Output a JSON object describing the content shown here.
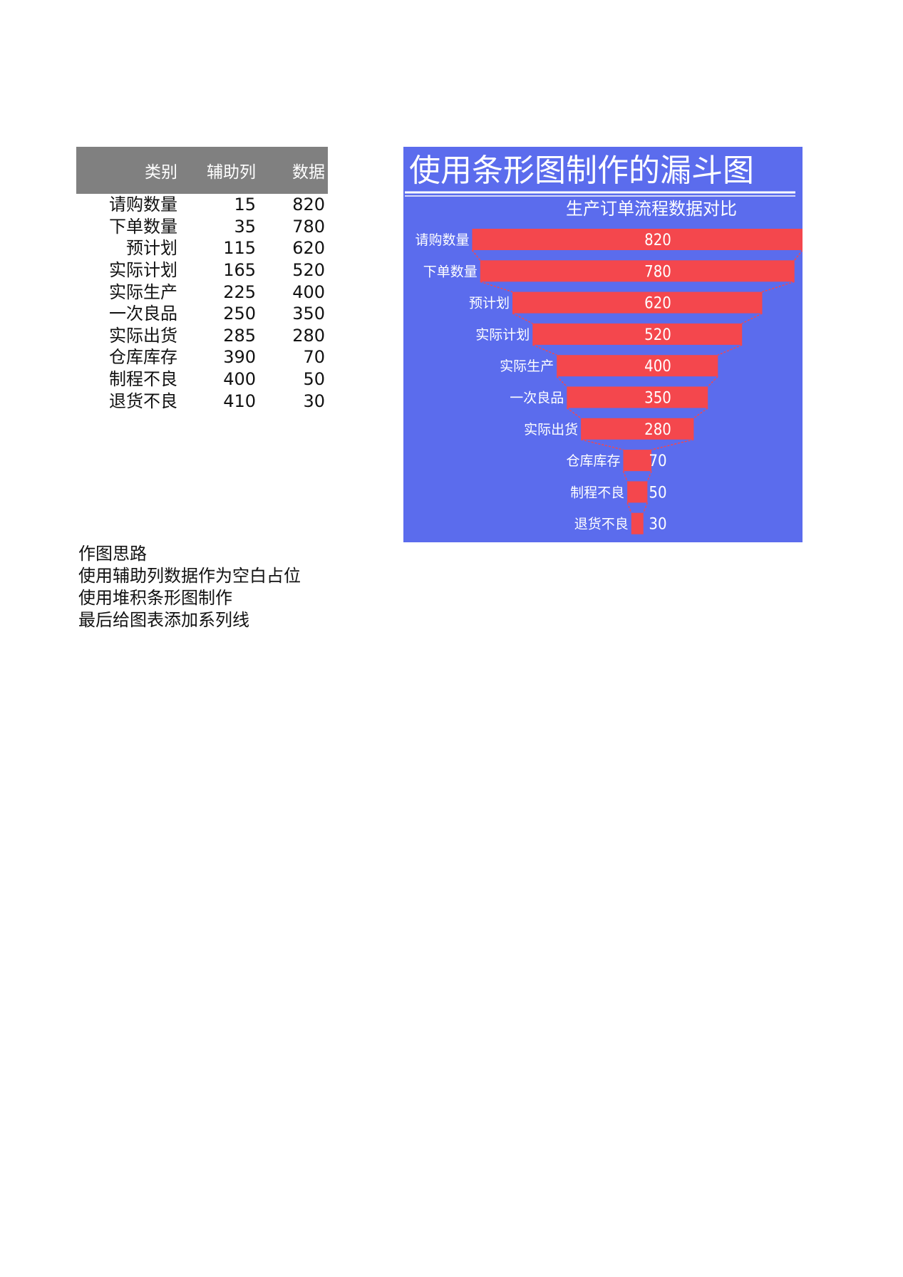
{
  "table": {
    "headers": [
      "类别",
      "辅助列",
      "数据"
    ],
    "rows": [
      [
        "请购数量",
        "15",
        "820"
      ],
      [
        "下单数量",
        "35",
        "780"
      ],
      [
        "预计划",
        "115",
        "620"
      ],
      [
        "实际计划",
        "165",
        "520"
      ],
      [
        "实际生产",
        "225",
        "400"
      ],
      [
        "一次良品",
        "250",
        "350"
      ],
      [
        "实际出货",
        "285",
        "280"
      ],
      [
        "仓库库存",
        "390",
        "70"
      ],
      [
        "制程不良",
        "400",
        "50"
      ],
      [
        "退货不良",
        "410",
        "30"
      ]
    ]
  },
  "notes": {
    "title": "作图思路",
    "lines": [
      "使用辅助列数据作为空白占位",
      "使用堆积条形图制作",
      "最后给图表添加系列线"
    ]
  },
  "colors": {
    "chart_bg": "#5b6ced",
    "bar": "#f4474d",
    "header_bg": "#808080",
    "text_light": "#ffffff"
  },
  "chart_data": {
    "type": "bar",
    "orientation": "horizontal",
    "stacked": true,
    "title": "使用条形图制作的漏斗图",
    "subtitle": "生产订单流程数据对比",
    "categories": [
      "请购数量",
      "下单数量",
      "预计划",
      "实际计划",
      "实际生产",
      "一次良品",
      "实际出货",
      "仓库库存",
      "制程不良",
      "退货不良"
    ],
    "series": [
      {
        "name": "辅助列",
        "values": [
          15,
          35,
          115,
          165,
          225,
          250,
          285,
          390,
          400,
          410
        ],
        "visible": false
      },
      {
        "name": "数据",
        "values": [
          820,
          780,
          620,
          520,
          400,
          350,
          280,
          70,
          50,
          30
        ]
      }
    ],
    "data_labels": true,
    "series_lines": true,
    "legend": "none",
    "grid": false,
    "xlim": [
      0,
      835
    ]
  }
}
